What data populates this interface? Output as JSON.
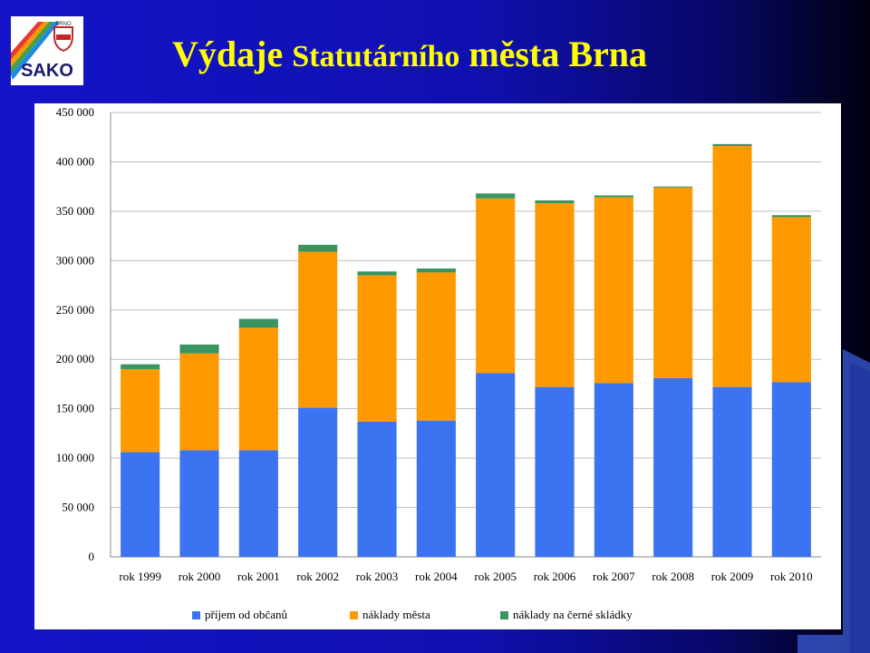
{
  "slide": {
    "title_part1": "Výdaje",
    "title_part2": "Statutárního",
    "title_part3": "města Brna",
    "logo_text": "SAKO",
    "logo_subtext": "BRNO"
  },
  "colors": {
    "background": "#1414c8",
    "title": "#ffff00",
    "series_1": "#3b73f0",
    "series_2": "#ff9900",
    "series_3": "#3a9460"
  },
  "chart_data": {
    "type": "bar",
    "stacked": true,
    "title": "",
    "xlabel": "",
    "ylabel": "",
    "ylim": [
      0,
      450000
    ],
    "yticks": [
      0,
      50000,
      100000,
      150000,
      200000,
      250000,
      300000,
      350000,
      400000,
      450000
    ],
    "ytick_labels": [
      "0",
      "50 000",
      "100 000",
      "150 000",
      "200 000",
      "250 000",
      "300 000",
      "350 000",
      "400 000",
      "450 000"
    ],
    "grid": true,
    "legend_position": "bottom",
    "categories": [
      "rok 1999",
      "rok 2000",
      "rok 2001",
      "rok 2002",
      "rok 2003",
      "rok 2004",
      "rok 2005",
      "rok 2006",
      "rok 2007",
      "rok 2008",
      "rok 2009",
      "rok 2010"
    ],
    "series": [
      {
        "name": "příjem od občanů",
        "color": "#3b73f0",
        "values": [
          106000,
          108000,
          108000,
          151000,
          137000,
          138000,
          186000,
          172000,
          176000,
          181000,
          172000,
          177000
        ]
      },
      {
        "name": "náklady města",
        "color": "#ff9900",
        "values": [
          84000,
          98000,
          124000,
          158000,
          148000,
          150000,
          177000,
          186000,
          188000,
          193000,
          244000,
          167000
        ]
      },
      {
        "name": "náklady na černé skládky",
        "color": "#3a9460",
        "values": [
          5000,
          9000,
          9000,
          7000,
          4000,
          4000,
          5000,
          3000,
          2000,
          1000,
          2000,
          2000
        ]
      }
    ]
  }
}
